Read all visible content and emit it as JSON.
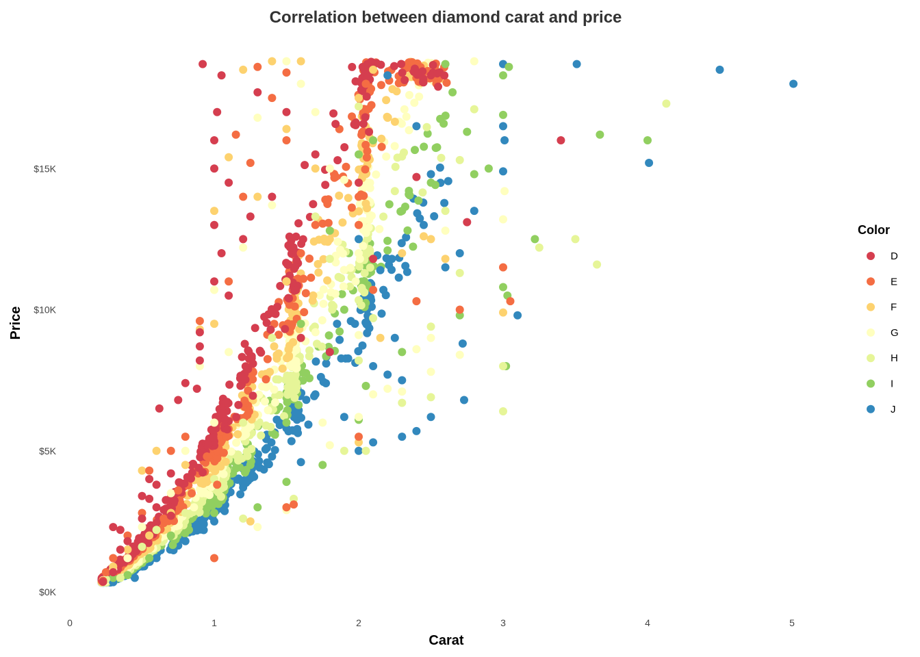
{
  "chart_data": {
    "type": "scatter",
    "title": "Correlation between diamond carat and price",
    "xlabel": "Carat",
    "ylabel": "Price",
    "xlim": [
      0,
      5.5
    ],
    "ylim": [
      0,
      19000
    ],
    "x_ticks": [
      {
        "value": 0,
        "label": "0"
      },
      {
        "value": 1,
        "label": "1"
      },
      {
        "value": 2,
        "label": "2"
      },
      {
        "value": 3,
        "label": "3"
      },
      {
        "value": 4,
        "label": "4"
      },
      {
        "value": 5,
        "label": "5"
      }
    ],
    "y_ticks": [
      {
        "value": 0,
        "label": "$0K"
      },
      {
        "value": 5000,
        "label": "$5K"
      },
      {
        "value": 10000,
        "label": "$10K"
      },
      {
        "value": 15000,
        "label": "$15K"
      }
    ],
    "grid": false,
    "legend": {
      "title": "Color",
      "position": "right"
    },
    "series": [
      {
        "name": "D",
        "color": "#d53e4f",
        "points": [
          [
            0.23,
            360
          ],
          [
            0.3,
            2300
          ],
          [
            0.35,
            2200
          ],
          [
            0.5,
            3400
          ],
          [
            0.55,
            4000
          ],
          [
            0.6,
            3800
          ],
          [
            0.62,
            6500
          ],
          [
            0.7,
            2700
          ],
          [
            0.75,
            6800
          ],
          [
            0.8,
            7400
          ],
          [
            0.9,
            9200
          ],
          [
            0.9,
            8700
          ],
          [
            0.9,
            8200
          ],
          [
            0.88,
            7200
          ],
          [
            0.92,
            18700
          ],
          [
            1.0,
            16000
          ],
          [
            1.0,
            15000
          ],
          [
            1.02,
            17000
          ],
          [
            1.05,
            18300
          ],
          [
            1.1,
            14500
          ],
          [
            1.2,
            12500
          ],
          [
            1.3,
            17700
          ],
          [
            1.5,
            17000
          ],
          [
            1.7,
            15500
          ],
          [
            2.0,
            14500
          ],
          [
            2.1,
            11800
          ],
          [
            2.4,
            14700
          ],
          [
            2.5,
            18300
          ],
          [
            2.55,
            17900
          ],
          [
            2.75,
            13100
          ],
          [
            3.4,
            16000
          ],
          [
            1.0,
            11000
          ],
          [
            1.1,
            10500
          ],
          [
            0.7,
            4200
          ],
          [
            0.6,
            3000
          ],
          [
            0.4,
            1800
          ],
          [
            0.5,
            2600
          ],
          [
            0.55,
            3300
          ],
          [
            1.25,
            13300
          ],
          [
            1.4,
            14000
          ],
          [
            1.6,
            9000
          ],
          [
            1.8,
            8500
          ],
          [
            0.3,
            700
          ],
          [
            0.35,
            1500
          ],
          [
            1.0,
            13000
          ],
          [
            1.05,
            12000
          ]
        ]
      },
      {
        "name": "E",
        "color": "#f46d43",
        "points": [
          [
            0.23,
            400
          ],
          [
            0.25,
            700
          ],
          [
            0.3,
            1200
          ],
          [
            0.4,
            2000
          ],
          [
            0.5,
            2800
          ],
          [
            0.55,
            4300
          ],
          [
            0.7,
            5000
          ],
          [
            0.8,
            5500
          ],
          [
            0.9,
            9600
          ],
          [
            1.0,
            1200
          ],
          [
            1.02,
            3800
          ],
          [
            1.1,
            11000
          ],
          [
            1.2,
            14000
          ],
          [
            1.3,
            18600
          ],
          [
            1.4,
            17500
          ],
          [
            1.5,
            16000
          ],
          [
            1.6,
            12000
          ],
          [
            1.7,
            13000
          ],
          [
            2.0,
            13000
          ],
          [
            2.05,
            18000
          ],
          [
            2.1,
            10700
          ],
          [
            2.4,
            10300
          ],
          [
            2.7,
            10000
          ],
          [
            3.0,
            11500
          ],
          [
            3.05,
            10300
          ],
          [
            1.5,
            3000
          ],
          [
            1.55,
            3100
          ],
          [
            2.0,
            5500
          ],
          [
            2.0,
            14000
          ],
          [
            1.25,
            15200
          ],
          [
            1.5,
            18400
          ],
          [
            1.15,
            16200
          ],
          [
            0.65,
            2600
          ],
          [
            0.75,
            3600
          ],
          [
            0.95,
            4800
          ]
        ]
      },
      {
        "name": "F",
        "color": "#fdd26f",
        "points": [
          [
            0.23,
            380
          ],
          [
            0.3,
            900
          ],
          [
            0.4,
            1500
          ],
          [
            0.5,
            4300
          ],
          [
            0.6,
            5000
          ],
          [
            0.7,
            2800
          ],
          [
            0.9,
            9300
          ],
          [
            1.0,
            13500
          ],
          [
            1.1,
            15400
          ],
          [
            1.2,
            18500
          ],
          [
            1.3,
            14000
          ],
          [
            1.4,
            18800
          ],
          [
            1.5,
            16400
          ],
          [
            1.6,
            18800
          ],
          [
            1.7,
            15000
          ],
          [
            1.8,
            12500
          ],
          [
            2.0,
            17500
          ],
          [
            2.1,
            18500
          ],
          [
            2.15,
            9000
          ],
          [
            2.3,
            12000
          ],
          [
            2.5,
            12500
          ],
          [
            2.6,
            11800
          ],
          [
            3.0,
            9900
          ],
          [
            1.25,
            2500
          ],
          [
            1.5,
            3000
          ],
          [
            1.5,
            11000
          ],
          [
            1.0,
            9500
          ],
          [
            0.8,
            4500
          ],
          [
            0.55,
            2000
          ],
          [
            2.0,
            5300
          ],
          [
            2.2,
            16800
          ],
          [
            2.45,
            12600
          ]
        ]
      },
      {
        "name": "G",
        "color": "#ffffbf",
        "points": [
          [
            0.23,
            420
          ],
          [
            0.3,
            800
          ],
          [
            0.4,
            1200
          ],
          [
            0.5,
            2300
          ],
          [
            0.7,
            3500
          ],
          [
            0.9,
            8000
          ],
          [
            1.0,
            10700
          ],
          [
            1.2,
            12200
          ],
          [
            1.3,
            16800
          ],
          [
            1.4,
            13700
          ],
          [
            1.5,
            18800
          ],
          [
            1.6,
            18000
          ],
          [
            1.7,
            17000
          ],
          [
            1.8,
            15000
          ],
          [
            1.9,
            14600
          ],
          [
            2.0,
            9100
          ],
          [
            2.1,
            7000
          ],
          [
            2.2,
            7200
          ],
          [
            2.3,
            7100
          ],
          [
            2.4,
            8600
          ],
          [
            2.5,
            7800
          ],
          [
            2.6,
            12800
          ],
          [
            2.7,
            8400
          ],
          [
            2.8,
            18800
          ],
          [
            3.0,
            13200
          ],
          [
            3.01,
            14200
          ],
          [
            1.1,
            8500
          ],
          [
            1.3,
            2300
          ],
          [
            1.5,
            2900
          ],
          [
            1.75,
            6000
          ],
          [
            1.8,
            5200
          ],
          [
            2.0,
            6200
          ],
          [
            2.0,
            12000
          ],
          [
            2.5,
            9000
          ],
          [
            1.0,
            6000
          ],
          [
            0.8,
            5000
          ]
        ]
      },
      {
        "name": "H",
        "color": "#e6f598",
        "points": [
          [
            0.25,
            450
          ],
          [
            0.35,
            500
          ],
          [
            0.5,
            1600
          ],
          [
            0.6,
            2200
          ],
          [
            0.8,
            2800
          ],
          [
            1.0,
            4000
          ],
          [
            1.2,
            6000
          ],
          [
            1.4,
            9000
          ],
          [
            1.5,
            11000
          ],
          [
            1.7,
            13300
          ],
          [
            2.0,
            17200
          ],
          [
            2.1,
            9700
          ],
          [
            2.3,
            6700
          ],
          [
            2.5,
            6900
          ],
          [
            2.5,
            9400
          ],
          [
            2.7,
            11300
          ],
          [
            2.8,
            17100
          ],
          [
            3.0,
            8000
          ],
          [
            3.0,
            6400
          ],
          [
            3.25,
            12200
          ],
          [
            3.5,
            12500
          ],
          [
            3.65,
            11600
          ],
          [
            4.13,
            17300
          ],
          [
            2.6,
            13500
          ],
          [
            2.7,
            15300
          ],
          [
            1.9,
            5000
          ],
          [
            2.0,
            8200
          ],
          [
            2.05,
            5000
          ],
          [
            1.55,
            3300
          ],
          [
            1.2,
            2600
          ],
          [
            2.25,
            14200
          ],
          [
            1.8,
            11800
          ]
        ]
      },
      {
        "name": "I",
        "color": "#91cf60",
        "points": [
          [
            0.3,
            500
          ],
          [
            0.4,
            600
          ],
          [
            0.55,
            1200
          ],
          [
            0.7,
            2000
          ],
          [
            1.0,
            2800
          ],
          [
            1.3,
            3000
          ],
          [
            1.5,
            3900
          ],
          [
            1.6,
            9500
          ],
          [
            1.8,
            12800
          ],
          [
            2.0,
            15500
          ],
          [
            2.1,
            16000
          ],
          [
            2.2,
            12100
          ],
          [
            2.3,
            13500
          ],
          [
            2.5,
            14500
          ],
          [
            2.6,
            18700
          ],
          [
            2.65,
            17700
          ],
          [
            2.7,
            9800
          ],
          [
            2.75,
            16300
          ],
          [
            2.8,
            14800
          ],
          [
            2.9,
            15000
          ],
          [
            3.0,
            18300
          ],
          [
            3.0,
            16900
          ],
          [
            3.0,
            10800
          ],
          [
            3.02,
            8000
          ],
          [
            3.03,
            10500
          ],
          [
            3.04,
            18600
          ],
          [
            3.22,
            12500
          ],
          [
            3.67,
            16200
          ],
          [
            4.0,
            16000
          ],
          [
            1.75,
            4500
          ],
          [
            2.0,
            6100
          ],
          [
            2.05,
            7300
          ],
          [
            2.3,
            8500
          ],
          [
            1.9,
            10000
          ],
          [
            1.5,
            6000
          ],
          [
            1.25,
            4500
          ]
        ]
      },
      {
        "name": "J",
        "color": "#3288bd",
        "points": [
          [
            0.3,
            350
          ],
          [
            0.45,
            500
          ],
          [
            0.6,
            1200
          ],
          [
            0.8,
            1800
          ],
          [
            1.0,
            2500
          ],
          [
            1.2,
            3700
          ],
          [
            1.4,
            4800
          ],
          [
            1.5,
            5800
          ],
          [
            1.7,
            7000
          ],
          [
            1.8,
            8500
          ],
          [
            1.85,
            9500
          ],
          [
            2.0,
            5000
          ],
          [
            2.1,
            5300
          ],
          [
            2.2,
            7700
          ],
          [
            2.3,
            5500
          ],
          [
            2.4,
            5700
          ],
          [
            2.5,
            6200
          ],
          [
            2.5,
            14800
          ],
          [
            2.6,
            11500
          ],
          [
            2.7,
            12000
          ],
          [
            2.72,
            8800
          ],
          [
            2.73,
            6800
          ],
          [
            2.8,
            13500
          ],
          [
            3.0,
            18700
          ],
          [
            3.0,
            16500
          ],
          [
            3.0,
            14900
          ],
          [
            3.1,
            9800
          ],
          [
            3.01,
            16000
          ],
          [
            3.51,
            18700
          ],
          [
            4.01,
            15200
          ],
          [
            4.5,
            18500
          ],
          [
            5.01,
            18000
          ],
          [
            2.1,
            8000
          ],
          [
            2.25,
            9000
          ],
          [
            2.0,
            12500
          ],
          [
            2.4,
            16500
          ],
          [
            2.2,
            18300
          ],
          [
            1.6,
            4600
          ],
          [
            1.9,
            6200
          ],
          [
            2.3,
            7500
          ],
          [
            2.15,
            11400
          ],
          [
            2.45,
            13000
          ]
        ]
      }
    ]
  }
}
